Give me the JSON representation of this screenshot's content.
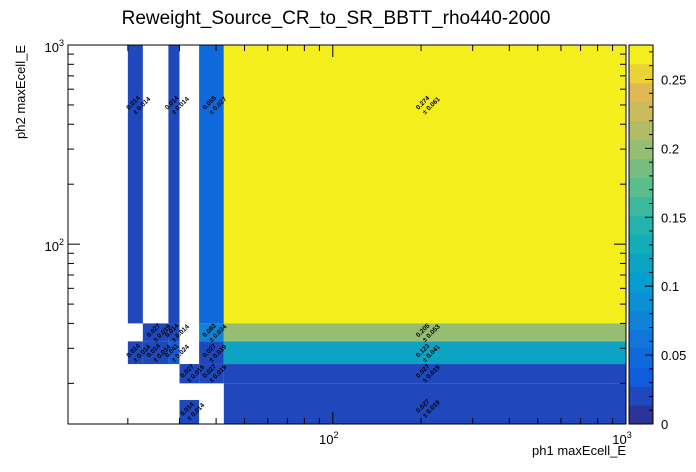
{
  "chart_data": {
    "type": "heatmap",
    "title": "Reweight_Source_CR_to_SR_BBTT_rho440-2000",
    "xlabel": "ph1 maxEcell_E",
    "ylabel": "ph2 maxEcell_E",
    "x_scale": "log",
    "y_scale": "log",
    "xlim": [
      12.5,
      1000
    ],
    "ylim": [
      12.5,
      1000
    ],
    "x_tick_labels": [
      "10^2",
      "10^3"
    ],
    "y_tick_labels": [
      "10^2",
      "10^3"
    ],
    "colorbar": {
      "range": [
        0,
        0.275
      ],
      "tick_values": [
        0,
        0.05,
        0.1,
        0.15,
        0.2,
        0.25
      ],
      "tick_labels": [
        "0",
        "0.05",
        "0.1",
        "0.15",
        "0.2",
        "0.25"
      ]
    },
    "cells": [
      {
        "x0": 20,
        "x1": 22.5,
        "y0": 40,
        "y1": 1000,
        "value": 0.014,
        "value_text": "0.014",
        "error_text": "± 0.014",
        "label_y": 500
      },
      {
        "x0": 27.5,
        "x1": 30,
        "y0": 40,
        "y1": 1000,
        "value": 0.014,
        "value_text": "0.014",
        "error_text": "± 0.014",
        "label_y": 500
      },
      {
        "x0": 35,
        "x1": 42.5,
        "y0": 40,
        "y1": 1000,
        "value": 0.055,
        "value_text": "0.055",
        "error_text": "± 0.027",
        "label_y": 500
      },
      {
        "x0": 42.5,
        "x1": 1000,
        "y0": 40,
        "y1": 1000,
        "value": 0.274,
        "value_text": "0.274",
        "error_text": "± 0.061",
        "label_y": 500
      },
      {
        "x0": 22.5,
        "x1": 27.5,
        "y0": 32.5,
        "y1": 40,
        "value": 0.027,
        "value_text": "0.027",
        "error_text": "± 0.019",
        "label_y": 36
      },
      {
        "x0": 27.5,
        "x1": 30,
        "y0": 32.5,
        "y1": 40,
        "value": 0.014,
        "value_text": "0.014",
        "error_text": "± 0.014",
        "label_y": 36
      },
      {
        "x0": 35,
        "x1": 42.5,
        "y0": 32.5,
        "y1": 40,
        "value": 0.082,
        "value_text": "0.082",
        "error_text": "± 0.034",
        "label_y": 36
      },
      {
        "x0": 42.5,
        "x1": 1000,
        "y0": 32.5,
        "y1": 40,
        "value": 0.205,
        "value_text": "0.205",
        "error_text": "± 0.053",
        "label_y": 36
      },
      {
        "x0": 20,
        "x1": 22.5,
        "y0": 25,
        "y1": 32.5,
        "value": 0.014,
        "value_text": "0.014",
        "error_text": "± 0.014",
        "label_y": 28.5
      },
      {
        "x0": 22.5,
        "x1": 27.5,
        "y0": 25,
        "y1": 32.5,
        "value": 0.014,
        "value_text": "0.014",
        "error_text": "± 0.014",
        "label_y": 28.5
      },
      {
        "x0": 27.5,
        "x1": 30,
        "y0": 25,
        "y1": 32.5,
        "value": 0.041,
        "value_text": "0.041",
        "error_text": "± 0.024",
        "label_y": 28.5
      },
      {
        "x0": 35,
        "x1": 42.5,
        "y0": 25,
        "y1": 32.5,
        "value": 0.027,
        "value_text": "0.027",
        "error_text": "± 0.019",
        "label_y": 28.5
      },
      {
        "x0": 42.5,
        "x1": 1000,
        "y0": 25,
        "y1": 32.5,
        "value": 0.123,
        "value_text": "0.123",
        "error_text": "± 0.041",
        "label_y": 28.5
      },
      {
        "x0": 30,
        "x1": 35,
        "y0": 20,
        "y1": 25,
        "value": 0.027,
        "value_text": "0.027",
        "error_text": "± 0.019",
        "label_y": 22.5
      },
      {
        "x0": 35,
        "x1": 42.5,
        "y0": 20,
        "y1": 25,
        "value": 0.027,
        "value_text": "0.027",
        "error_text": "± 0.019",
        "label_y": 22.5
      },
      {
        "x0": 42.5,
        "x1": 1000,
        "y0": 20,
        "y1": 25,
        "value": 0.027,
        "value_text": "0.027",
        "error_text": "± 0.019",
        "label_y": 22.5
      },
      {
        "x0": 30,
        "x1": 35,
        "y0": 12.5,
        "y1": 16.5,
        "value": 0.014,
        "value_text": "0.014",
        "error_text": "± 0.014",
        "label_y": 14.5
      },
      {
        "x0": 42.5,
        "x1": 1000,
        "y0": 12.5,
        "y1": 20,
        "value": 0.027,
        "value_text": "0.027",
        "error_text": "± 0.019",
        "label_y": 15
      }
    ]
  }
}
